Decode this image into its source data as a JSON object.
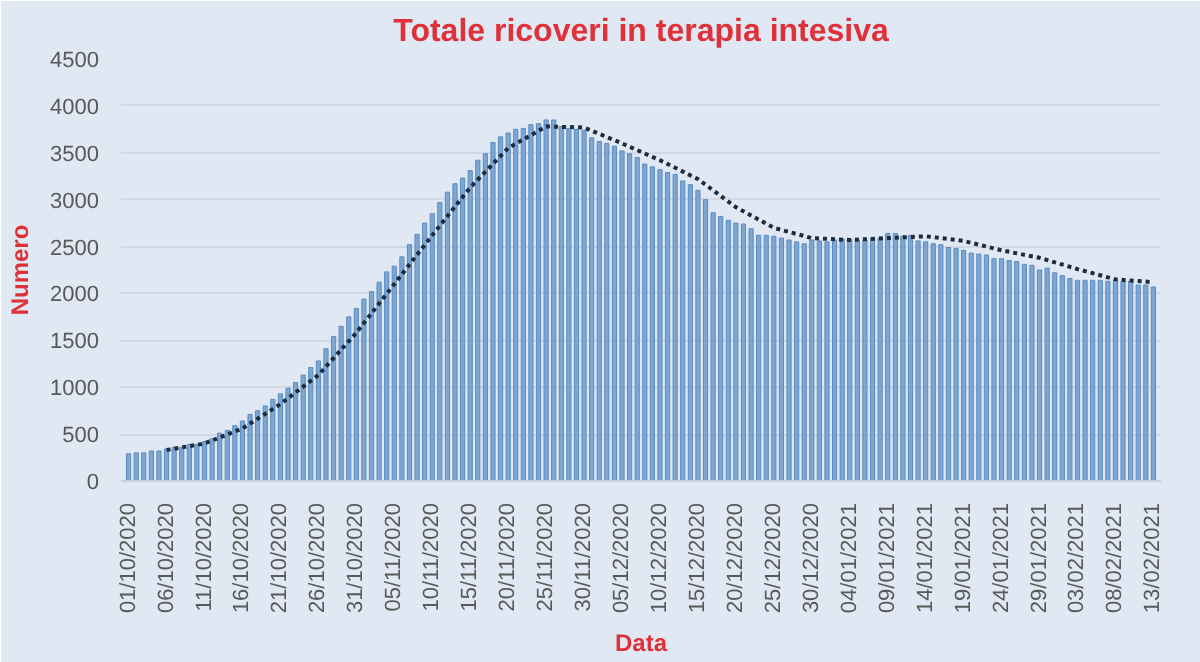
{
  "chart_data": {
    "type": "bar",
    "title": "Totale ricoveri in terapia intesiva",
    "xlabel": "Data",
    "ylabel": "Numero",
    "categories": [
      "01/10/2020",
      null,
      null,
      null,
      null,
      "06/10/2020",
      null,
      null,
      null,
      null,
      "11/10/2020",
      null,
      null,
      null,
      null,
      "16/10/2020",
      null,
      null,
      null,
      null,
      "21/10/2020",
      null,
      null,
      null,
      null,
      "26/10/2020",
      null,
      null,
      null,
      null,
      "31/10/2020",
      null,
      null,
      null,
      null,
      "05/11/2020",
      null,
      null,
      null,
      null,
      "10/11/2020",
      null,
      null,
      null,
      null,
      "15/11/2020",
      null,
      null,
      null,
      null,
      "20/11/2020",
      null,
      null,
      null,
      null,
      "25/11/2020",
      null,
      null,
      null,
      null,
      "30/11/2020",
      null,
      null,
      null,
      null,
      "05/12/2020",
      null,
      null,
      null,
      null,
      "10/12/2020",
      null,
      null,
      null,
      null,
      "15/12/2020",
      null,
      null,
      null,
      null,
      "20/12/2020",
      null,
      null,
      null,
      null,
      "25/12/2020",
      null,
      null,
      null,
      null,
      "30/12/2020",
      null,
      null,
      null,
      null,
      "04/01/2021",
      null,
      null,
      null,
      null,
      "09/01/2021",
      null,
      null,
      null,
      null,
      "14/01/2021",
      null,
      null,
      null,
      null,
      "19/01/2021",
      null,
      null,
      null,
      null,
      "24/01/2021",
      null,
      null,
      null,
      null,
      "29/01/2021",
      null,
      null,
      null,
      null,
      "03/02/2021",
      null,
      null,
      null,
      null,
      "08/02/2021",
      null,
      null,
      null,
      null,
      "13/02/2021"
    ],
    "series": [
      {
        "color": "#7ea6d3",
        "values": [
          290,
          300,
          300,
          320,
          320,
          340,
          360,
          360,
          390,
          390,
          420,
          450,
          510,
          540,
          590,
          640,
          710,
          750,
          800,
          870,
          930,
          990,
          1050,
          1130,
          1210,
          1280,
          1410,
          1540,
          1650,
          1750,
          1840,
          1940,
          2020,
          2120,
          2230,
          2290,
          2390,
          2520,
          2630,
          2750,
          2850,
          2970,
          3080,
          3170,
          3230,
          3310,
          3420,
          3490,
          3610,
          3670,
          3710,
          3750,
          3760,
          3800,
          3810,
          3850,
          3850,
          3780,
          3760,
          3750,
          3740,
          3660,
          3620,
          3600,
          3570,
          3520,
          3490,
          3450,
          3380,
          3350,
          3320,
          3290,
          3270,
          3200,
          3160,
          3100,
          3000,
          2860,
          2820,
          2780,
          2750,
          2740,
          2690,
          2620,
          2620,
          2610,
          2590,
          2570,
          2550,
          2530,
          2570,
          2560,
          2550,
          2570,
          2580,
          2580,
          2570,
          2570,
          2590,
          2590,
          2640,
          2640,
          2610,
          2620,
          2560,
          2550,
          2530,
          2520,
          2490,
          2480,
          2460,
          2430,
          2420,
          2410,
          2370,
          2370,
          2350,
          2340,
          2310,
          2300,
          2250,
          2270,
          2220,
          2190,
          2160,
          2140,
          2140,
          2140,
          2140,
          2130,
          2140,
          2130,
          2130,
          2090,
          2090,
          2070
        ]
      },
      {
        "type": "line",
        "color": "#1c2b3e",
        "line_style": "dotted",
        "x": [
          "06/10/2020",
          "11/10/2020",
          "16/10/2020",
          "21/10/2020",
          "26/10/2020",
          "31/10/2020",
          "05/11/2020",
          "10/11/2020",
          "15/11/2020",
          "20/11/2020",
          "25/11/2020",
          "30/11/2020",
          "05/12/2020",
          "10/12/2020",
          "15/12/2020",
          "20/12/2020",
          "25/12/2020",
          "30/12/2020",
          "04/01/2021",
          "09/01/2021",
          "14/01/2021",
          "19/01/2021",
          "24/01/2021",
          "29/01/2021",
          "03/02/2021",
          "08/02/2021",
          "13/02/2021"
        ],
        "values": [
          330,
          400,
          560,
          820,
          1130,
          1580,
          2100,
          2620,
          3130,
          3550,
          3780,
          3770,
          3600,
          3420,
          3220,
          2920,
          2700,
          2590,
          2570,
          2590,
          2610,
          2560,
          2460,
          2380,
          2260,
          2150,
          2120
        ]
      }
    ],
    "ylim": [
      0,
      4500
    ],
    "yticks": [
      0,
      500,
      1000,
      1500,
      2000,
      2500,
      3000,
      3500,
      4000,
      4500
    ],
    "grid": "y"
  }
}
